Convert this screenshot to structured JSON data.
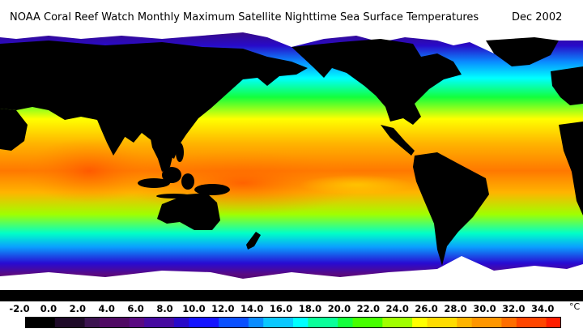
{
  "header": {
    "title": "NOAA Coral Reef Watch Monthly Maximum Satellite Nighttime Sea Surface Temperatures",
    "date": "Dec 2002"
  },
  "legend": {
    "unit": "°C",
    "tick_labels": [
      "-2.0",
      "0.0",
      "2.0",
      "4.0",
      "6.0",
      "8.0",
      "10.0",
      "12.0",
      "14.0",
      "16.0",
      "18.0",
      "20.0",
      "22.0",
      "24.0",
      "26.0",
      "28.0",
      "30.0",
      "32.0",
      "34.0"
    ],
    "colors": [
      "#000000",
      "#1e0a28",
      "#3c1450",
      "#500a64",
      "#5a0a82",
      "#460aa0",
      "#280ac8",
      "#1414ff",
      "#0a50ff",
      "#0a8cff",
      "#0ac8ff",
      "#00ffff",
      "#0aff9a",
      "#14ff3c",
      "#46ff00",
      "#a0ff00",
      "#ffff00",
      "#ffdc00",
      "#ffb400",
      "#ff9600",
      "#ff6e00",
      "#ff4600",
      "#ff1e00"
    ]
  },
  "map": {
    "land_color": "#000000",
    "ice_color": "#ffffff"
  }
}
